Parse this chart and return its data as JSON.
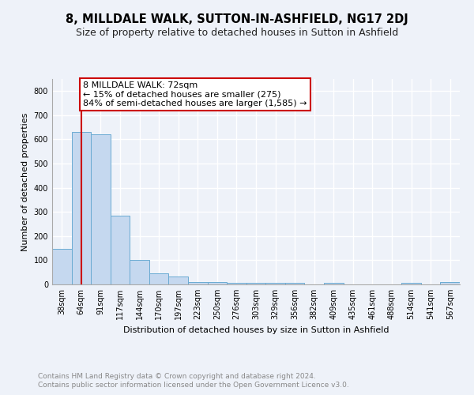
{
  "title": "8, MILLDALE WALK, SUTTON-IN-ASHFIELD, NG17 2DJ",
  "subtitle": "Size of property relative to detached houses in Sutton in Ashfield",
  "xlabel": "Distribution of detached houses by size in Sutton in Ashfield",
  "ylabel": "Number of detached properties",
  "bar_labels": [
    "38sqm",
    "64sqm",
    "91sqm",
    "117sqm",
    "144sqm",
    "170sqm",
    "197sqm",
    "223sqm",
    "250sqm",
    "276sqm",
    "303sqm",
    "329sqm",
    "356sqm",
    "382sqm",
    "409sqm",
    "435sqm",
    "461sqm",
    "488sqm",
    "514sqm",
    "541sqm",
    "567sqm"
  ],
  "bar_values": [
    148,
    630,
    622,
    285,
    102,
    46,
    32,
    11,
    10,
    7,
    8,
    5,
    5,
    0,
    7,
    0,
    0,
    0,
    7,
    0,
    10
  ],
  "bar_color": "#c5d8ef",
  "bar_edge_color": "#6aabd2",
  "vline_x_idx": 1,
  "vline_color": "#cc0000",
  "annotation_text": "8 MILLDALE WALK: 72sqm\n← 15% of detached houses are smaller (275)\n84% of semi-detached houses are larger (1,585) →",
  "annotation_box_facecolor": "#ffffff",
  "annotation_box_edgecolor": "#cc0000",
  "ylim": [
    0,
    850
  ],
  "yticks": [
    0,
    100,
    200,
    300,
    400,
    500,
    600,
    700,
    800
  ],
  "footer_line1": "Contains HM Land Registry data © Crown copyright and database right 2024.",
  "footer_line2": "Contains public sector information licensed under the Open Government Licence v3.0.",
  "bg_color": "#eef2f9",
  "grid_color": "#ffffff",
  "title_fontsize": 10.5,
  "subtitle_fontsize": 9,
  "tick_fontsize": 7,
  "label_fontsize": 8,
  "annotation_fontsize": 8,
  "footer_fontsize": 6.5,
  "footer_color": "#888888"
}
